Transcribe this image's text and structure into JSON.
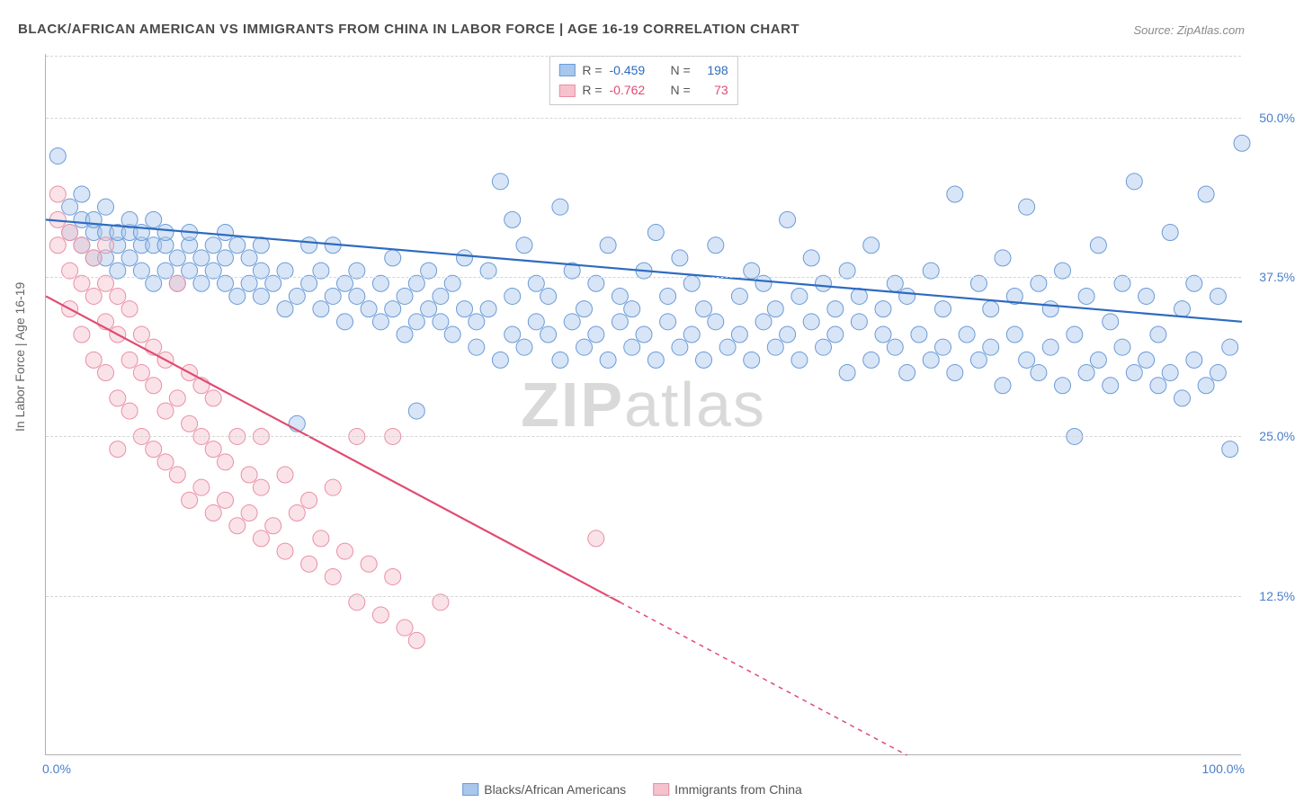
{
  "title": "BLACK/AFRICAN AMERICAN VS IMMIGRANTS FROM CHINA IN LABOR FORCE | AGE 16-19 CORRELATION CHART",
  "source_label": "Source: ZipAtlas.com",
  "ylabel": "In Labor Force | Age 16-19",
  "watermark_bold": "ZIP",
  "watermark_rest": "atlas",
  "chart": {
    "type": "scatter",
    "background_color": "#ffffff",
    "grid_color": "#d5d5d5",
    "axis_color": "#b0b0b0",
    "tick_color": "#4a7ec9",
    "label_color": "#666666",
    "title_color": "#4a4a4a",
    "title_fontsize": 15,
    "label_fontsize": 14,
    "tick_fontsize": 14,
    "xlim": [
      0,
      100
    ],
    "ylim": [
      0,
      55
    ],
    "yticks": [
      12.5,
      25.0,
      37.5,
      50.0
    ],
    "ytick_labels": [
      "12.5%",
      "25.0%",
      "37.5%",
      "50.0%"
    ],
    "xticks": [
      0,
      100
    ],
    "xtick_labels": [
      "0.0%",
      "100.0%"
    ],
    "marker_radius": 9,
    "marker_opacity": 0.45,
    "line_width": 2.2,
    "stats_border_color": "#c8c8c8",
    "series": [
      {
        "name": "Blacks/African Americans",
        "color_fill": "#a9c6ec",
        "color_stroke": "#6b9bd8",
        "color_line": "#2e6bc0",
        "R_label": "R =",
        "R_value": "-0.459",
        "N_label": "N =",
        "N_value": "198",
        "trend": {
          "x1": 0,
          "y1": 42.0,
          "x2": 100,
          "y2": 34.0,
          "dash": "none"
        },
        "points": [
          [
            1,
            47
          ],
          [
            2,
            41
          ],
          [
            2,
            43
          ],
          [
            3,
            40
          ],
          [
            3,
            42
          ],
          [
            3,
            44
          ],
          [
            4,
            39
          ],
          [
            4,
            41
          ],
          [
            4,
            42
          ],
          [
            5,
            39
          ],
          [
            5,
            41
          ],
          [
            5,
            43
          ],
          [
            6,
            38
          ],
          [
            6,
            40
          ],
          [
            6,
            41
          ],
          [
            7,
            39
          ],
          [
            7,
            41
          ],
          [
            7,
            42
          ],
          [
            8,
            38
          ],
          [
            8,
            40
          ],
          [
            8,
            41
          ],
          [
            9,
            37
          ],
          [
            9,
            40
          ],
          [
            9,
            42
          ],
          [
            10,
            38
          ],
          [
            10,
            40
          ],
          [
            10,
            41
          ],
          [
            11,
            37
          ],
          [
            11,
            39
          ],
          [
            12,
            38
          ],
          [
            12,
            40
          ],
          [
            12,
            41
          ],
          [
            13,
            37
          ],
          [
            13,
            39
          ],
          [
            14,
            38
          ],
          [
            14,
            40
          ],
          [
            15,
            37
          ],
          [
            15,
            39
          ],
          [
            15,
            41
          ],
          [
            16,
            36
          ],
          [
            16,
            40
          ],
          [
            17,
            37
          ],
          [
            17,
            39
          ],
          [
            18,
            36
          ],
          [
            18,
            38
          ],
          [
            18,
            40
          ],
          [
            19,
            37
          ],
          [
            20,
            35
          ],
          [
            20,
            38
          ],
          [
            21,
            36
          ],
          [
            21,
            26
          ],
          [
            22,
            37
          ],
          [
            22,
            40
          ],
          [
            23,
            35
          ],
          [
            23,
            38
          ],
          [
            24,
            36
          ],
          [
            24,
            40
          ],
          [
            25,
            34
          ],
          [
            25,
            37
          ],
          [
            26,
            36
          ],
          [
            26,
            38
          ],
          [
            27,
            35
          ],
          [
            28,
            34
          ],
          [
            28,
            37
          ],
          [
            29,
            35
          ],
          [
            29,
            39
          ],
          [
            30,
            33
          ],
          [
            30,
            36
          ],
          [
            31,
            34
          ],
          [
            31,
            37
          ],
          [
            31,
            27
          ],
          [
            32,
            35
          ],
          [
            32,
            38
          ],
          [
            33,
            34
          ],
          [
            33,
            36
          ],
          [
            34,
            33
          ],
          [
            34,
            37
          ],
          [
            35,
            35
          ],
          [
            35,
            39
          ],
          [
            36,
            32
          ],
          [
            36,
            34
          ],
          [
            37,
            35
          ],
          [
            37,
            38
          ],
          [
            38,
            31
          ],
          [
            38,
            45
          ],
          [
            39,
            33
          ],
          [
            39,
            36
          ],
          [
            39,
            42
          ],
          [
            40,
            32
          ],
          [
            40,
            40
          ],
          [
            41,
            34
          ],
          [
            41,
            37
          ],
          [
            42,
            33
          ],
          [
            42,
            36
          ],
          [
            43,
            31
          ],
          [
            43,
            43
          ],
          [
            44,
            34
          ],
          [
            44,
            38
          ],
          [
            45,
            32
          ],
          [
            45,
            35
          ],
          [
            46,
            33
          ],
          [
            46,
            37
          ],
          [
            47,
            31
          ],
          [
            47,
            40
          ],
          [
            48,
            34
          ],
          [
            48,
            36
          ],
          [
            49,
            32
          ],
          [
            49,
            35
          ],
          [
            50,
            33
          ],
          [
            50,
            38
          ],
          [
            51,
            31
          ],
          [
            51,
            41
          ],
          [
            52,
            34
          ],
          [
            52,
            36
          ],
          [
            53,
            32
          ],
          [
            53,
            39
          ],
          [
            54,
            33
          ],
          [
            54,
            37
          ],
          [
            55,
            31
          ],
          [
            55,
            35
          ],
          [
            56,
            34
          ],
          [
            56,
            40
          ],
          [
            57,
            32
          ],
          [
            58,
            33
          ],
          [
            58,
            36
          ],
          [
            59,
            31
          ],
          [
            59,
            38
          ],
          [
            60,
            34
          ],
          [
            60,
            37
          ],
          [
            61,
            32
          ],
          [
            61,
            35
          ],
          [
            62,
            33
          ],
          [
            62,
            42
          ],
          [
            63,
            31
          ],
          [
            63,
            36
          ],
          [
            64,
            34
          ],
          [
            64,
            39
          ],
          [
            65,
            32
          ],
          [
            65,
            37
          ],
          [
            66,
            33
          ],
          [
            66,
            35
          ],
          [
            67,
            30
          ],
          [
            67,
            38
          ],
          [
            68,
            34
          ],
          [
            68,
            36
          ],
          [
            69,
            31
          ],
          [
            69,
            40
          ],
          [
            70,
            33
          ],
          [
            70,
            35
          ],
          [
            71,
            32
          ],
          [
            71,
            37
          ],
          [
            72,
            30
          ],
          [
            72,
            36
          ],
          [
            73,
            33
          ],
          [
            74,
            31
          ],
          [
            74,
            38
          ],
          [
            75,
            32
          ],
          [
            75,
            35
          ],
          [
            76,
            30
          ],
          [
            76,
            44
          ],
          [
            77,
            33
          ],
          [
            78,
            31
          ],
          [
            78,
            37
          ],
          [
            79,
            32
          ],
          [
            79,
            35
          ],
          [
            80,
            29
          ],
          [
            80,
            39
          ],
          [
            81,
            33
          ],
          [
            81,
            36
          ],
          [
            82,
            31
          ],
          [
            82,
            43
          ],
          [
            83,
            30
          ],
          [
            83,
            37
          ],
          [
            84,
            32
          ],
          [
            84,
            35
          ],
          [
            85,
            29
          ],
          [
            85,
            38
          ],
          [
            86,
            33
          ],
          [
            86,
            25
          ],
          [
            87,
            30
          ],
          [
            87,
            36
          ],
          [
            88,
            31
          ],
          [
            88,
            40
          ],
          [
            89,
            29
          ],
          [
            89,
            34
          ],
          [
            90,
            32
          ],
          [
            90,
            37
          ],
          [
            91,
            30
          ],
          [
            91,
            45
          ],
          [
            92,
            31
          ],
          [
            92,
            36
          ],
          [
            93,
            29
          ],
          [
            93,
            33
          ],
          [
            94,
            30
          ],
          [
            94,
            41
          ],
          [
            95,
            28
          ],
          [
            95,
            35
          ],
          [
            96,
            31
          ],
          [
            96,
            37
          ],
          [
            97,
            29
          ],
          [
            97,
            44
          ],
          [
            98,
            30
          ],
          [
            98,
            36
          ],
          [
            99,
            32
          ],
          [
            99,
            24
          ],
          [
            100,
            48
          ]
        ]
      },
      {
        "name": "Immigrants from China",
        "color_fill": "#f5c2cd",
        "color_stroke": "#ea8fa4",
        "color_line": "#e14b72",
        "R_label": "R =",
        "R_value": "-0.762",
        "N_label": "N =",
        "N_value": "73",
        "trend": {
          "x1": 0,
          "y1": 36.0,
          "x2": 100,
          "y2": -14.0,
          "dash_after_x": 48
        },
        "points": [
          [
            1,
            42
          ],
          [
            1,
            40
          ],
          [
            1,
            44
          ],
          [
            2,
            38
          ],
          [
            2,
            41
          ],
          [
            2,
            35
          ],
          [
            3,
            33
          ],
          [
            3,
            37
          ],
          [
            3,
            40
          ],
          [
            4,
            31
          ],
          [
            4,
            36
          ],
          [
            4,
            39
          ],
          [
            5,
            30
          ],
          [
            5,
            34
          ],
          [
            5,
            37
          ],
          [
            5,
            40
          ],
          [
            6,
            28
          ],
          [
            6,
            24
          ],
          [
            6,
            33
          ],
          [
            6,
            36
          ],
          [
            7,
            27
          ],
          [
            7,
            31
          ],
          [
            7,
            35
          ],
          [
            8,
            25
          ],
          [
            8,
            30
          ],
          [
            8,
            33
          ],
          [
            9,
            24
          ],
          [
            9,
            29
          ],
          [
            9,
            32
          ],
          [
            10,
            23
          ],
          [
            10,
            27
          ],
          [
            10,
            31
          ],
          [
            11,
            22
          ],
          [
            11,
            28
          ],
          [
            11,
            37
          ],
          [
            12,
            20
          ],
          [
            12,
            26
          ],
          [
            12,
            30
          ],
          [
            13,
            21
          ],
          [
            13,
            25
          ],
          [
            13,
            29
          ],
          [
            14,
            19
          ],
          [
            14,
            24
          ],
          [
            14,
            28
          ],
          [
            15,
            20
          ],
          [
            15,
            23
          ],
          [
            16,
            18
          ],
          [
            16,
            25
          ],
          [
            17,
            19
          ],
          [
            17,
            22
          ],
          [
            18,
            17
          ],
          [
            18,
            21
          ],
          [
            18,
            25
          ],
          [
            19,
            18
          ],
          [
            20,
            16
          ],
          [
            20,
            22
          ],
          [
            21,
            19
          ],
          [
            22,
            15
          ],
          [
            22,
            20
          ],
          [
            23,
            17
          ],
          [
            24,
            14
          ],
          [
            24,
            21
          ],
          [
            25,
            16
          ],
          [
            26,
            12
          ],
          [
            26,
            25
          ],
          [
            27,
            15
          ],
          [
            28,
            11
          ],
          [
            29,
            14
          ],
          [
            29,
            25
          ],
          [
            30,
            10
          ],
          [
            31,
            9
          ],
          [
            33,
            12
          ],
          [
            46,
            17
          ]
        ]
      }
    ]
  },
  "legend_bottom": [
    {
      "label": "Blacks/African Americans",
      "fill": "#a9c6ec",
      "stroke": "#6b9bd8"
    },
    {
      "label": "Immigrants from China",
      "fill": "#f5c2cd",
      "stroke": "#ea8fa4"
    }
  ]
}
